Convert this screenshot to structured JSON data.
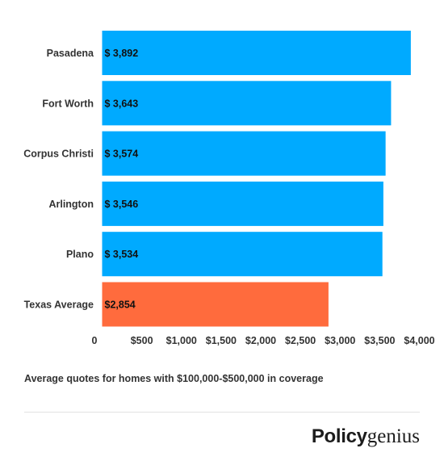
{
  "chart_data": {
    "type": "bar",
    "orientation": "horizontal",
    "categories": [
      "Pasadena",
      "Fort Worth",
      "Corpus Christi",
      "Arlington",
      "Plano",
      "Texas Average"
    ],
    "values": [
      3892,
      3643,
      3574,
      3546,
      3534,
      2854
    ],
    "value_labels": [
      "$ 3,892",
      "$ 3,643",
      "$ 3,574",
      "$ 3,546",
      "$ 3,534",
      "$2,854"
    ],
    "colors": [
      "#00aaff",
      "#00aaff",
      "#00aaff",
      "#00aaff",
      "#00aaff",
      "#ff6b3d"
    ],
    "x_ticks": [
      0,
      500,
      1000,
      1500,
      2000,
      2500,
      3000,
      3500,
      4000
    ],
    "x_tick_labels": [
      "0",
      "$500",
      "$1,000",
      "$1,500",
      "$2,000",
      "$2,500",
      "$3,000",
      "$3,500",
      "$4,000"
    ],
    "xlim": [
      0,
      4000
    ],
    "grid": false,
    "legend": "none"
  },
  "caption": "Average quotes for homes with $100,000-$500,000 in coverage",
  "brand": {
    "part1": "Policy",
    "part2": "genius"
  }
}
